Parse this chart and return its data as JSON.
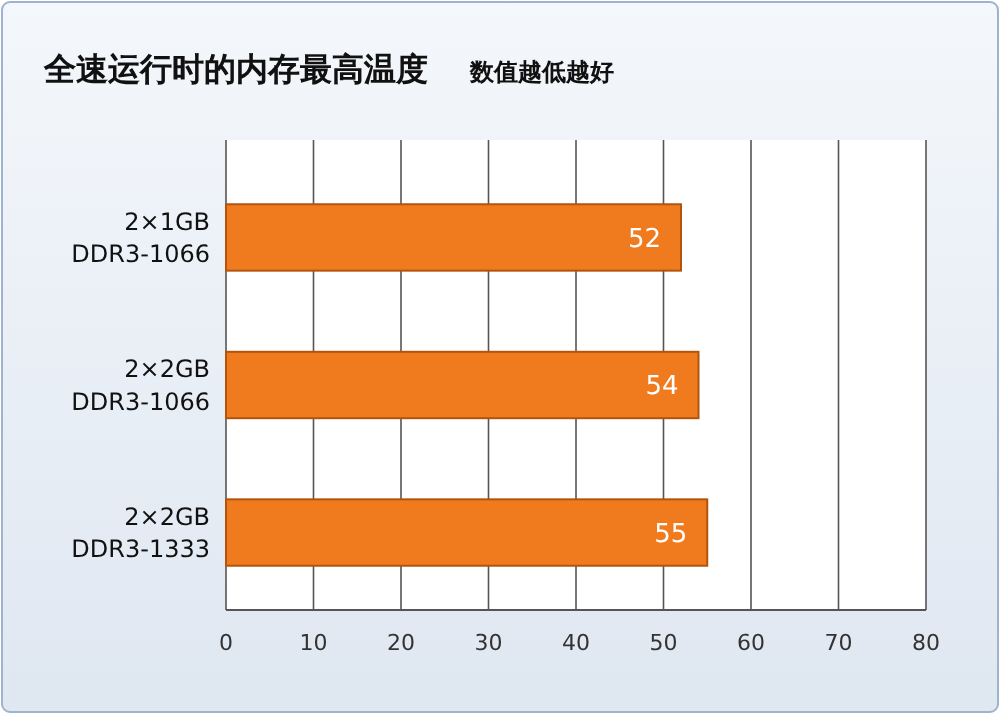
{
  "chart_data": {
    "type": "bar",
    "orientation": "horizontal",
    "title": "全速运行时的内存最高温度",
    "subtitle": "数值越低越好",
    "categories": [
      "2×1GB\nDDR3-1066",
      "2×2GB\nDDR3-1066",
      "2×2GB\nDDR3-1333"
    ],
    "values": [
      52,
      54,
      55
    ],
    "color": "#f07a1e",
    "data_labels": true,
    "xlim": [
      0,
      80
    ],
    "xticks": [
      0,
      10,
      20,
      30,
      40,
      50,
      60,
      70,
      80
    ],
    "grid": "x"
  }
}
